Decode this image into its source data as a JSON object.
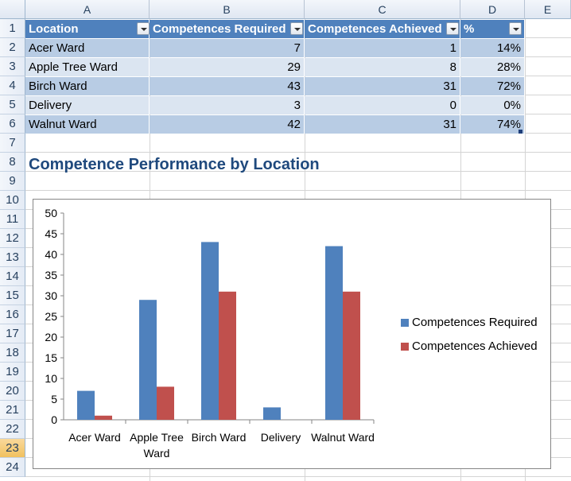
{
  "columns": [
    "A",
    "B",
    "C",
    "D",
    "E"
  ],
  "rows": [
    "1",
    "2",
    "3",
    "4",
    "5",
    "6",
    "7",
    "8",
    "9",
    "10",
    "11",
    "12",
    "13",
    "14",
    "15",
    "16",
    "17",
    "18",
    "19",
    "20",
    "21",
    "22",
    "23",
    "24"
  ],
  "active_row": "23",
  "table": {
    "headers": [
      "Location",
      "Competences Required",
      "Competences Achieved",
      "%"
    ],
    "rows": [
      [
        "Acer Ward",
        "7",
        "1",
        "14%"
      ],
      [
        "Apple Tree Ward",
        "29",
        "8",
        "28%"
      ],
      [
        "Birch Ward",
        "43",
        "31",
        "72%"
      ],
      [
        "Delivery",
        "3",
        "0",
        "0%"
      ],
      [
        "Walnut Ward",
        "42",
        "31",
        "74%"
      ]
    ]
  },
  "sheet_title": "Competence Performance by Location",
  "colors": {
    "header_fill": "#4f81bd",
    "band_dark": "#b8cce4",
    "band_light": "#dbe5f1",
    "series_required": "#4f81bd",
    "series_achieved": "#c0504d",
    "title_text": "#1f497d"
  },
  "chart_data": {
    "type": "bar",
    "categories": [
      "Acer Ward",
      "Apple Tree Ward",
      "Birch Ward",
      "Delivery",
      "Walnut Ward"
    ],
    "series": [
      {
        "name": "Competences Required",
        "values": [
          7,
          29,
          43,
          3,
          42
        ],
        "color": "#4f81bd"
      },
      {
        "name": "Competences Achieved",
        "values": [
          1,
          8,
          31,
          0,
          31
        ],
        "color": "#c0504d"
      }
    ],
    "ylim": [
      0,
      50
    ],
    "yticks": [
      "0",
      "5",
      "10",
      "15",
      "20",
      "25",
      "30",
      "35",
      "40",
      "45",
      "50"
    ],
    "grid": false,
    "legend": "right"
  }
}
